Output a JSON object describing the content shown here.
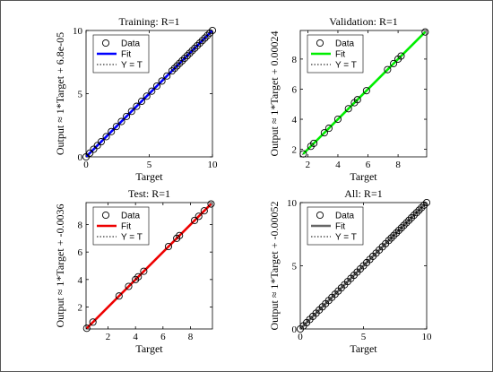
{
  "chart_data": [
    {
      "type": "scatter",
      "title": "Training: R=1",
      "xlabel": "Target",
      "ylabel": "Output ≈ 1*Target + 6.8e-05",
      "xlim": [
        0,
        10
      ],
      "ylim": [
        0,
        10
      ],
      "xticks": [
        0,
        5,
        10
      ],
      "yticks": [
        0,
        5,
        10
      ],
      "fit_color": "#0000ff",
      "legend": [
        "Data",
        "Fit",
        "Y = T"
      ],
      "legend_position": "top-left",
      "fit": {
        "slope": 1,
        "intercept": 6.8e-05
      },
      "x": [
        0,
        0.3,
        0.6,
        0.9,
        1.2,
        1.6,
        2.0,
        2.4,
        2.8,
        3.2,
        3.6,
        4.0,
        4.4,
        4.8,
        5.2,
        5.6,
        6.0,
        6.4,
        6.8,
        7.0,
        7.2,
        7.4,
        7.6,
        7.8,
        8.0,
        8.2,
        8.4,
        8.6,
        8.8,
        9.0,
        9.2,
        9.4,
        9.6,
        9.8,
        10
      ],
      "y": [
        0,
        0.3,
        0.6,
        0.9,
        1.2,
        1.6,
        2.0,
        2.4,
        2.8,
        3.2,
        3.6,
        4.0,
        4.4,
        4.8,
        5.2,
        5.6,
        6.0,
        6.4,
        6.8,
        7.0,
        7.2,
        7.4,
        7.6,
        7.8,
        8.0,
        8.2,
        8.4,
        8.6,
        8.8,
        9.0,
        9.2,
        9.4,
        9.6,
        9.8,
        10
      ]
    },
    {
      "type": "scatter",
      "title": "Validation: R=1",
      "xlabel": "Target",
      "ylabel": "Output ≈ 1*Target + 0.00024",
      "xlim": [
        1.5,
        9.9
      ],
      "ylim": [
        1.5,
        9.9
      ],
      "xticks": [
        2,
        4,
        6,
        8
      ],
      "yticks": [
        2,
        4,
        6,
        8
      ],
      "fit_color": "#00ee00",
      "legend": [
        "Data",
        "Fit",
        "Y = T"
      ],
      "legend_position": "top-left",
      "fit": {
        "slope": 1,
        "intercept": 0.00024
      },
      "x": [
        1.7,
        2.2,
        2.4,
        3.1,
        3.4,
        4.0,
        4.7,
        5.1,
        5.3,
        5.9,
        7.3,
        7.7,
        8.0,
        8.2,
        9.8
      ],
      "y": [
        1.7,
        2.2,
        2.4,
        3.1,
        3.4,
        4.0,
        4.7,
        5.1,
        5.3,
        5.9,
        7.3,
        7.7,
        8.0,
        8.2,
        9.8
      ]
    },
    {
      "type": "scatter",
      "title": "Test: R=1",
      "xlabel": "Target",
      "ylabel": "Output ≈ 1*Target + -0.0036",
      "xlim": [
        0.4,
        9.6
      ],
      "ylim": [
        0.4,
        9.6
      ],
      "xticks": [
        2,
        4,
        6,
        8
      ],
      "yticks": [
        2,
        4,
        6,
        8
      ],
      "fit_color": "#ee0000",
      "legend": [
        "Data",
        "Fit",
        "Y = T"
      ],
      "legend_position": "top-left",
      "fit": {
        "slope": 1,
        "intercept": -0.0036
      },
      "x": [
        0.45,
        0.9,
        2.8,
        3.5,
        4.0,
        4.2,
        4.6,
        6.4,
        7.0,
        7.2,
        8.3,
        8.6,
        9.0,
        9.5
      ],
      "y": [
        0.45,
        0.9,
        2.8,
        3.5,
        4.0,
        4.2,
        4.6,
        6.4,
        7.0,
        7.2,
        8.3,
        8.6,
        9.0,
        9.5
      ]
    },
    {
      "type": "scatter",
      "title": "All: R=1",
      "xlabel": "Target",
      "ylabel": "Output ≈ 1*Target + -0.00052",
      "xlim": [
        0,
        10
      ],
      "ylim": [
        0,
        10
      ],
      "xticks": [
        0,
        5,
        10
      ],
      "yticks": [
        0,
        5,
        10
      ],
      "fit_color": "#666666",
      "legend": [
        "Data",
        "Fit",
        "Y = T"
      ],
      "legend_position": "top-left",
      "fit": {
        "slope": 1,
        "intercept": -0.00052
      },
      "x": [
        0,
        0.25,
        0.5,
        0.75,
        1.0,
        1.25,
        1.5,
        1.75,
        2.0,
        2.25,
        2.5,
        2.75,
        3.0,
        3.25,
        3.5,
        3.75,
        4.0,
        4.25,
        4.5,
        4.75,
        5.0,
        5.25,
        5.5,
        5.75,
        6.0,
        6.25,
        6.5,
        6.75,
        7.0,
        7.2,
        7.4,
        7.6,
        7.8,
        8.0,
        8.2,
        8.4,
        8.6,
        8.8,
        9.0,
        9.2,
        9.4,
        9.6,
        9.8,
        10
      ],
      "y": [
        0,
        0.25,
        0.5,
        0.75,
        1.0,
        1.25,
        1.5,
        1.75,
        2.0,
        2.25,
        2.5,
        2.75,
        3.0,
        3.25,
        3.5,
        3.75,
        4.0,
        4.25,
        4.5,
        4.75,
        5.0,
        5.25,
        5.5,
        5.75,
        6.0,
        6.25,
        6.5,
        6.75,
        7.0,
        7.2,
        7.4,
        7.6,
        7.8,
        8.0,
        8.2,
        8.4,
        8.6,
        8.8,
        9.0,
        9.2,
        9.4,
        9.6,
        9.8,
        10
      ]
    }
  ]
}
